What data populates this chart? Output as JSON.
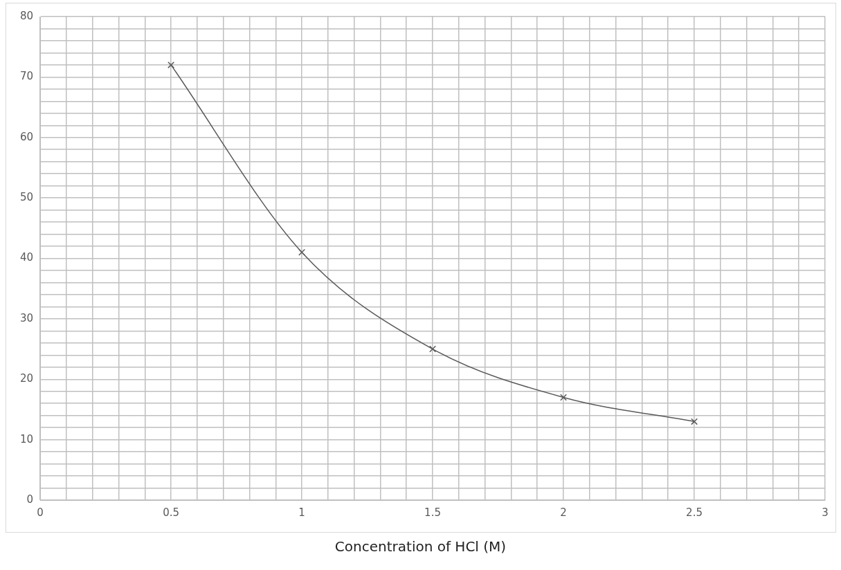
{
  "chart_data": {
    "type": "line",
    "xlabel": "Concentration of HCl (M)",
    "x": [
      0.5,
      1,
      1.5,
      2,
      2.5
    ],
    "series": [
      {
        "color": "#595959",
        "values": [
          72,
          41,
          25,
          17,
          13
        ]
      }
    ],
    "xlim": [
      0,
      3
    ],
    "xticks": [
      0,
      {
        "value": 0.1,
        "label": null
      },
      {
        "value": 0.2,
        "label": null
      },
      {
        "value": 0.3,
        "label": null
      },
      {
        "value": 0.4,
        "label": null
      },
      0.5,
      {
        "value": 0.6,
        "label": null
      },
      {
        "value": 0.7,
        "label": null
      },
      {
        "value": 0.8,
        "label": null
      },
      {
        "value": 0.9,
        "label": null
      },
      1,
      {
        "value": 1.1,
        "label": null
      },
      {
        "value": 1.2,
        "label": null
      },
      {
        "value": 1.3,
        "label": null
      },
      {
        "value": 1.4,
        "label": null
      },
      1.5,
      {
        "value": 1.6,
        "label": null
      },
      {
        "value": 1.7,
        "label": null
      },
      {
        "value": 1.8,
        "label": null
      },
      {
        "value": 1.9,
        "label": null
      },
      2,
      {
        "value": 2.1,
        "label": null
      },
      {
        "value": 2.2,
        "label": null
      },
      {
        "value": 2.3,
        "label": null
      },
      {
        "value": 2.4,
        "label": null
      },
      2.5,
      {
        "value": 2.6,
        "label": null
      },
      {
        "value": 2.7,
        "label": null
      },
      {
        "value": 2.8,
        "label": null
      },
      {
        "value": 2.9,
        "label": null
      },
      3
    ],
    "ylim": [
      0,
      80
    ],
    "yticks": [
      0,
      {
        "value": 2,
        "label": null
      },
      {
        "value": 4,
        "label": null
      },
      {
        "value": 6,
        "label": null
      },
      {
        "value": 8,
        "label": null
      },
      10,
      {
        "value": 12,
        "label": null
      },
      {
        "value": 14,
        "label": null
      },
      {
        "value": 16,
        "label": null
      },
      {
        "value": 18,
        "label": null
      },
      20,
      {
        "value": 22,
        "label": null
      },
      {
        "value": 24,
        "label": null
      },
      {
        "value": 26,
        "label": null
      },
      {
        "value": 28,
        "label": null
      },
      30,
      {
        "value": 32,
        "label": null
      },
      {
        "value": 34,
        "label": null
      },
      {
        "value": 36,
        "label": null
      },
      {
        "value": 38,
        "label": null
      },
      40,
      {
        "value": 42,
        "label": null
      },
      {
        "value": 44,
        "label": null
      },
      {
        "value": 46,
        "label": null
      },
      {
        "value": 48,
        "label": null
      },
      50,
      {
        "value": 52,
        "label": null
      },
      {
        "value": 54,
        "label": null
      },
      {
        "value": 56,
        "label": null
      },
      {
        "value": 58,
        "label": null
      },
      60,
      {
        "value": 62,
        "label": null
      },
      {
        "value": 64,
        "label": null
      },
      {
        "value": 66,
        "label": null
      },
      {
        "value": 68,
        "label": null
      },
      70,
      {
        "value": 72,
        "label": null
      },
      {
        "value": 74,
        "label": null
      },
      {
        "value": 76,
        "label": null
      },
      {
        "value": 78,
        "label": null
      },
      80
    ],
    "grid": true,
    "legend": false,
    "marker": "cross",
    "line_style": "solid"
  }
}
